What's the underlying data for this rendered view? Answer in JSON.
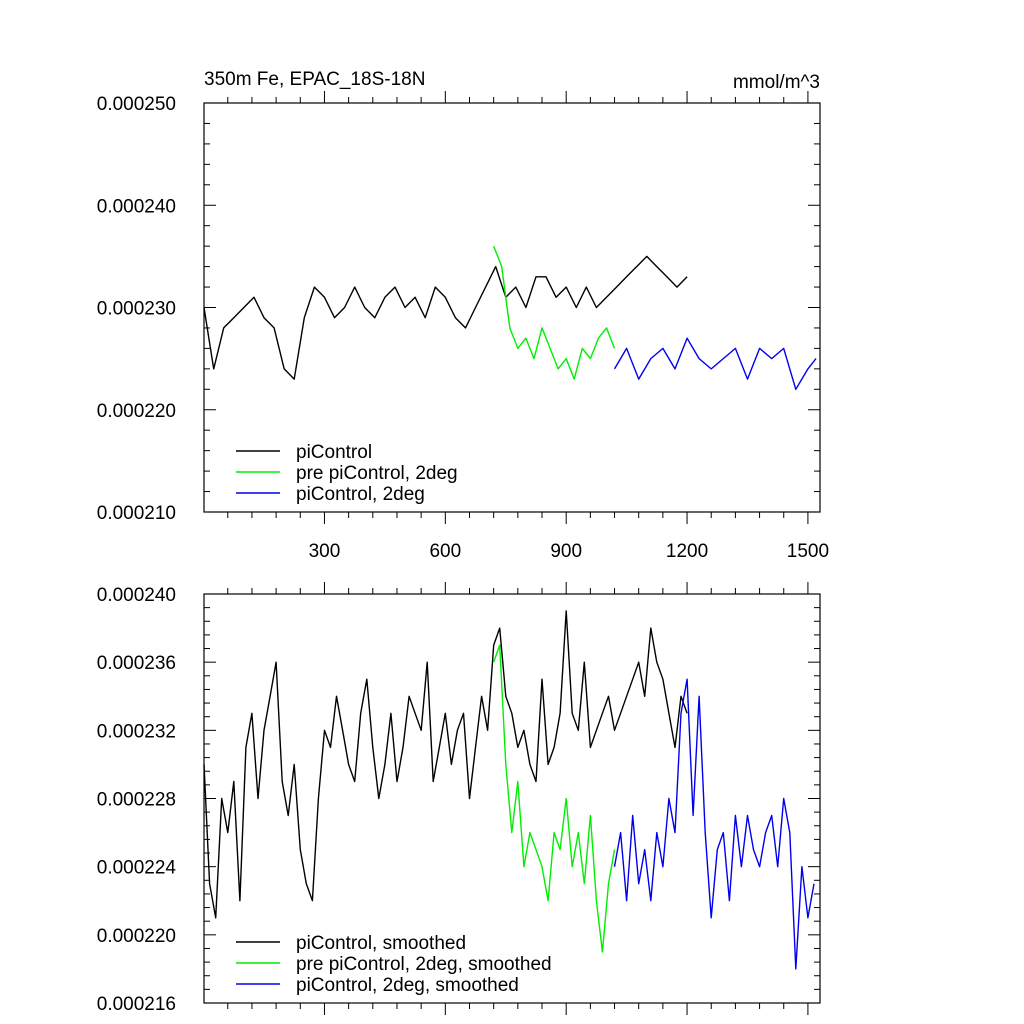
{
  "chart_data": [
    {
      "type": "line",
      "title_left": "350m Fe, EPAC_18S-18N",
      "title_right": "mmol/m^3",
      "xlim": [
        1,
        1530
      ],
      "ylim": [
        0.00021,
        0.00025
      ],
      "x_ticks": [
        300,
        600,
        900,
        1200,
        1500
      ],
      "x_tick_labels": [
        "300",
        "600",
        "900",
        "1200",
        "1500"
      ],
      "y_ticks": [
        0.00021,
        0.00022,
        0.00023,
        0.00024,
        0.00025
      ],
      "y_tick_labels": [
        "0.000210",
        "0.000220",
        "0.000230",
        "0.000240",
        "0.000250"
      ],
      "legend_position": "bottom-left",
      "series": [
        {
          "name": "piControl",
          "color": "#000000",
          "x": [
            1,
            25,
            50,
            75,
            100,
            125,
            150,
            175,
            200,
            225,
            250,
            275,
            300,
            325,
            350,
            375,
            400,
            425,
            450,
            475,
            500,
            525,
            550,
            575,
            600,
            625,
            650,
            675,
            700,
            725,
            750,
            775,
            800,
            825,
            850,
            875,
            900,
            925,
            950,
            975,
            1000,
            1025,
            1050,
            1075,
            1100,
            1125,
            1150,
            1175,
            1200
          ],
          "values": [
            0.00023,
            0.000224,
            0.000228,
            0.000229,
            0.00023,
            0.000231,
            0.000229,
            0.000228,
            0.000224,
            0.000223,
            0.000229,
            0.000232,
            0.000231,
            0.000229,
            0.00023,
            0.000232,
            0.00023,
            0.000229,
            0.000231,
            0.000232,
            0.00023,
            0.000231,
            0.000229,
            0.000232,
            0.000231,
            0.000229,
            0.000228,
            0.00023,
            0.000232,
            0.000234,
            0.000231,
            0.000232,
            0.00023,
            0.000233,
            0.000233,
            0.000231,
            0.000232,
            0.00023,
            0.000232,
            0.00023,
            0.000231,
            0.000232,
            0.000233,
            0.000234,
            0.000235,
            0.000234,
            0.000233,
            0.000232,
            0.000233
          ]
        },
        {
          "name": "pre piControl, 2deg",
          "color": "#00ee00",
          "x": [
            720,
            740,
            760,
            780,
            800,
            820,
            840,
            860,
            880,
            900,
            920,
            940,
            960,
            980,
            1000,
            1020
          ],
          "values": [
            0.000236,
            0.000234,
            0.000228,
            0.000226,
            0.000227,
            0.000225,
            0.000228,
            0.000226,
            0.000224,
            0.000225,
            0.000223,
            0.000226,
            0.000225,
            0.000227,
            0.000228,
            0.000226
          ]
        },
        {
          "name": "piControl, 2deg",
          "color": "#0000ee",
          "x": [
            1020,
            1050,
            1080,
            1110,
            1140,
            1170,
            1200,
            1230,
            1260,
            1290,
            1320,
            1350,
            1380,
            1410,
            1440,
            1470,
            1500,
            1520
          ],
          "values": [
            0.000224,
            0.000226,
            0.000223,
            0.000225,
            0.000226,
            0.000224,
            0.000227,
            0.000225,
            0.000224,
            0.000225,
            0.000226,
            0.000223,
            0.000226,
            0.000225,
            0.000226,
            0.000222,
            0.000224,
            0.000225
          ]
        }
      ]
    },
    {
      "type": "line",
      "xlim": [
        1,
        1530
      ],
      "ylim": [
        0.000216,
        0.00024
      ],
      "x_ticks": [
        300,
        600,
        900,
        1200,
        1500
      ],
      "y_ticks": [
        0.000216,
        0.00022,
        0.000224,
        0.000228,
        0.000232,
        0.000236,
        0.00024
      ],
      "y_tick_labels": [
        "0.000216",
        "0.000220",
        "0.000224",
        "0.000228",
        "0.000232",
        "0.000236",
        "0.000240"
      ],
      "legend_position": "bottom-left",
      "series": [
        {
          "name": "piControl, smoothed",
          "color": "#000000",
          "x": [
            1,
            15,
            30,
            45,
            60,
            75,
            90,
            105,
            120,
            135,
            150,
            165,
            180,
            195,
            210,
            225,
            240,
            255,
            270,
            285,
            300,
            315,
            330,
            345,
            360,
            375,
            390,
            405,
            420,
            435,
            450,
            465,
            480,
            495,
            510,
            525,
            540,
            555,
            570,
            585,
            600,
            615,
            630,
            645,
            660,
            675,
            690,
            705,
            720,
            735,
            750,
            765,
            780,
            795,
            810,
            825,
            840,
            855,
            870,
            885,
            900,
            915,
            930,
            945,
            960,
            975,
            990,
            1005,
            1020,
            1035,
            1050,
            1065,
            1080,
            1095,
            1110,
            1125,
            1140,
            1155,
            1170,
            1185,
            1200
          ],
          "values": [
            0.00023,
            0.000223,
            0.000221,
            0.000228,
            0.000226,
            0.000229,
            0.000222,
            0.000231,
            0.000233,
            0.000228,
            0.000232,
            0.000234,
            0.000236,
            0.000229,
            0.000227,
            0.00023,
            0.000225,
            0.000223,
            0.000222,
            0.000228,
            0.000232,
            0.000231,
            0.000234,
            0.000232,
            0.00023,
            0.000229,
            0.000233,
            0.000235,
            0.000231,
            0.000228,
            0.00023,
            0.000233,
            0.000229,
            0.000231,
            0.000234,
            0.000233,
            0.000232,
            0.000236,
            0.000229,
            0.000231,
            0.000233,
            0.00023,
            0.000232,
            0.000233,
            0.000228,
            0.000231,
            0.000234,
            0.000232,
            0.000237,
            0.000238,
            0.000234,
            0.000233,
            0.000231,
            0.000232,
            0.00023,
            0.000229,
            0.000235,
            0.00023,
            0.000231,
            0.000233,
            0.000239,
            0.000233,
            0.000232,
            0.000236,
            0.000231,
            0.000232,
            0.000233,
            0.000234,
            0.000232,
            0.000233,
            0.000234,
            0.000235,
            0.000236,
            0.000234,
            0.000238,
            0.000236,
            0.000235,
            0.000233,
            0.000231,
            0.000234,
            0.000233
          ]
        },
        {
          "name": "pre piControl, 2deg, smoothed",
          "color": "#00ee00",
          "x": [
            720,
            735,
            750,
            765,
            780,
            795,
            810,
            825,
            840,
            855,
            870,
            885,
            900,
            915,
            930,
            945,
            960,
            975,
            990,
            1005,
            1020
          ],
          "values": [
            0.000236,
            0.000237,
            0.00023,
            0.000226,
            0.000229,
            0.000224,
            0.000226,
            0.000225,
            0.000224,
            0.000222,
            0.000226,
            0.000225,
            0.000228,
            0.000224,
            0.000226,
            0.000223,
            0.000227,
            0.000222,
            0.000219,
            0.000223,
            0.000225
          ]
        },
        {
          "name": "piControl, 2deg, smoothed",
          "color": "#0000ee",
          "x": [
            1020,
            1035,
            1050,
            1065,
            1080,
            1095,
            1110,
            1125,
            1140,
            1155,
            1170,
            1185,
            1200,
            1215,
            1230,
            1245,
            1260,
            1275,
            1290,
            1305,
            1320,
            1335,
            1350,
            1365,
            1380,
            1395,
            1410,
            1425,
            1440,
            1455,
            1470,
            1485,
            1500,
            1515
          ],
          "values": [
            0.000224,
            0.000226,
            0.000222,
            0.000227,
            0.000223,
            0.000225,
            0.000222,
            0.000226,
            0.000224,
            0.000228,
            0.000226,
            0.000233,
            0.000235,
            0.000227,
            0.000234,
            0.000226,
            0.000221,
            0.000225,
            0.000226,
            0.000222,
            0.000227,
            0.000224,
            0.000227,
            0.000225,
            0.000224,
            0.000226,
            0.000227,
            0.000224,
            0.000228,
            0.000226,
            0.000218,
            0.000224,
            0.000221,
            0.000223
          ]
        }
      ]
    }
  ]
}
